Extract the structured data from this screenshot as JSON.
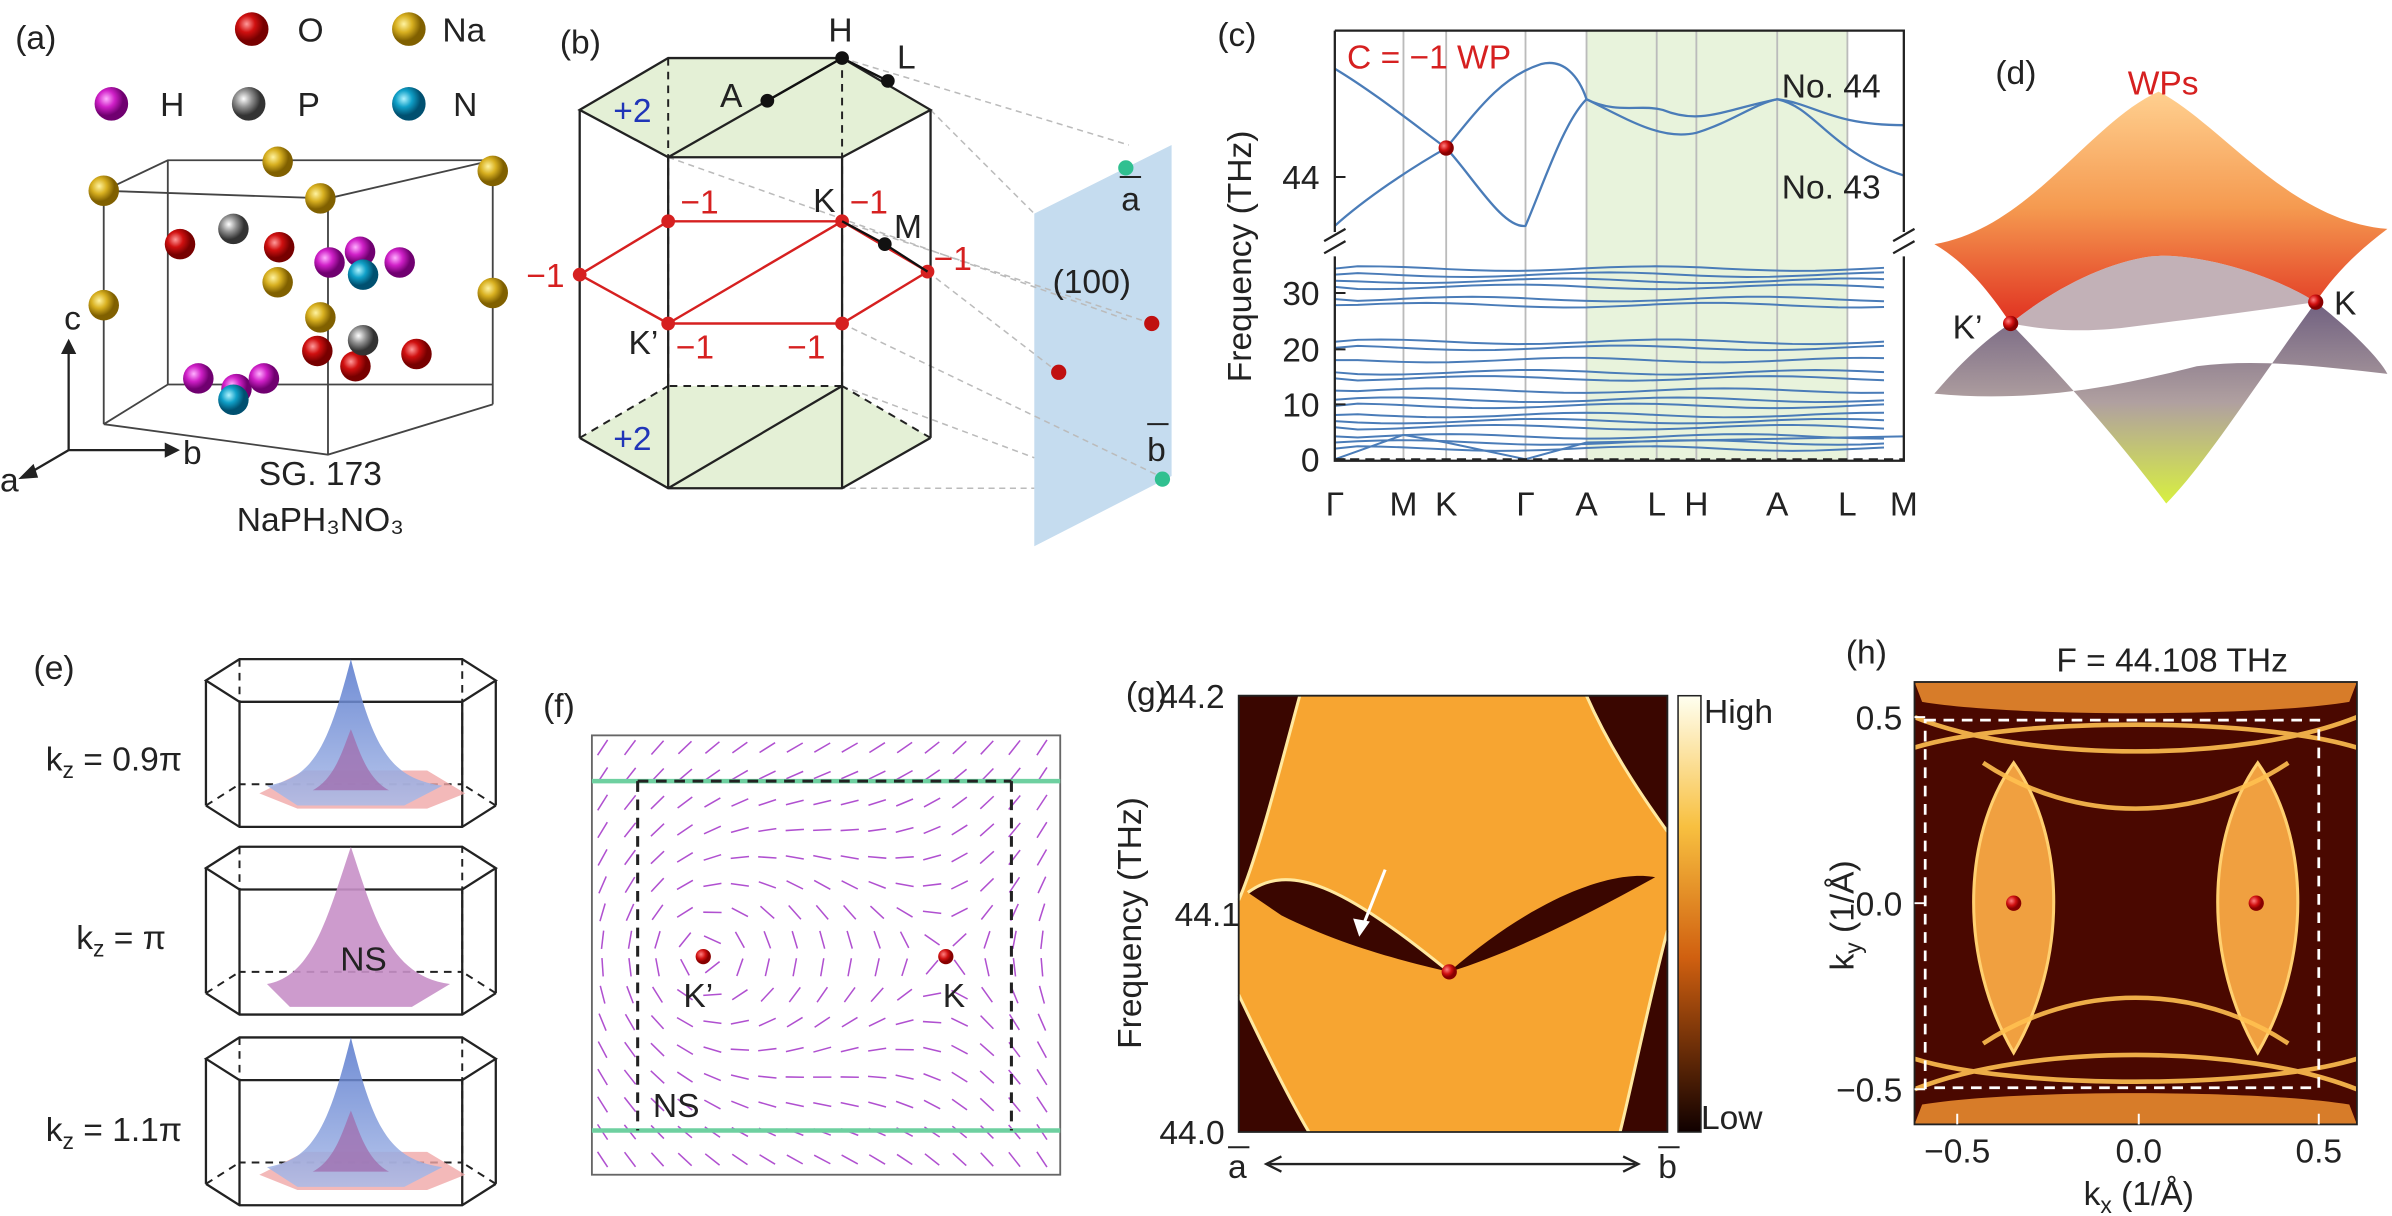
{
  "panel_labels": [
    "(a)",
    "(b)",
    "(c)",
    "(d)",
    "(e)",
    "(f)",
    "(g)",
    "(h)"
  ],
  "a": {
    "legend": [
      "O",
      "Na",
      "H",
      "P",
      "N"
    ],
    "axes": [
      "a",
      "b",
      "c"
    ],
    "space_group": "SG. 173",
    "formula": "NaPH₃NO₃"
  },
  "b": {
    "points": [
      "H",
      "L",
      "A",
      "K",
      "M",
      "K’"
    ],
    "charges": [
      "+2",
      "−1",
      "−1",
      "−1",
      "−1",
      "−1",
      "−1",
      "+2"
    ],
    "surface": "(100)",
    "surface_points": [
      "a",
      "b"
    ]
  },
  "c": {
    "annotation": "C = −1 WP",
    "bands": [
      "No. 44",
      "No. 43"
    ],
    "y_label": "Frequency (THz)",
    "y_ticks": [
      "44",
      "30",
      "20",
      "10",
      "0"
    ],
    "x_ticks": [
      "Γ",
      "M",
      "K",
      "Γ",
      "A",
      "L",
      "H",
      "A",
      "L",
      "M"
    ]
  },
  "d": {
    "title": "WPs",
    "points": [
      "K’",
      "K"
    ]
  },
  "e": {
    "rows": [
      {
        "k": "k",
        "sub": "z",
        "text": " = 0.9π"
      },
      {
        "k": "k",
        "sub": "z",
        "text": " = π"
      },
      {
        "k": "k",
        "sub": "z",
        "text": " = 1.1π"
      }
    ],
    "annotation": "NS"
  },
  "f": {
    "points": [
      "K’",
      "K"
    ],
    "annotation": "NS"
  },
  "g": {
    "y_ticks": [
      "44.2",
      "44.1",
      "44.0"
    ],
    "y_label": "Frequency (THz)",
    "colorbar": [
      "High",
      "Low"
    ],
    "x_ends": [
      "a",
      "b"
    ]
  },
  "h": {
    "title": "F = 44.108 THz",
    "y_ticks": [
      "0.5",
      "0.0",
      "−0.5"
    ],
    "x_ticks": [
      "−0.5",
      "0.0",
      "0.5"
    ],
    "y_label": {
      "k": "k",
      "sub": "y",
      "text": " (1/Å)"
    },
    "x_label": {
      "k": "k",
      "sub": "x",
      "text": " (1/Å)"
    }
  }
}
